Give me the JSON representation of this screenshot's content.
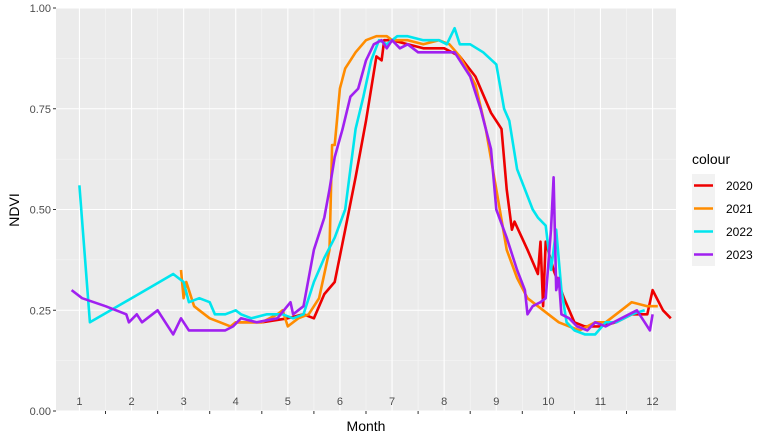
{
  "chart_data": {
    "type": "line",
    "title": "",
    "xlabel": "Month",
    "ylabel": "NDVI",
    "xlim": [
      0.55,
      12.45
    ],
    "ylim": [
      0,
      1
    ],
    "grid": true,
    "legend_position": "right",
    "legend_title": "colour",
    "month_labels": [
      "1",
      "2",
      "3",
      "4",
      "5",
      "6",
      "7",
      "8",
      "9",
      "10",
      "11",
      "12"
    ],
    "y_ticks": [
      0,
      0.25,
      0.5,
      0.75,
      1
    ],
    "y_tick_labels": [
      "0.00",
      "0.25",
      "0.50",
      "0.75",
      "1.00"
    ],
    "series": [
      {
        "name": "2020",
        "color": "#ee0000",
        "points": [
          [
            4,
            0.22
          ],
          [
            4.5,
            0.22
          ],
          [
            5,
            0.23
          ],
          [
            5.3,
            0.24
          ],
          [
            5.5,
            0.23
          ],
          [
            5.7,
            0.29
          ],
          [
            5.9,
            0.32
          ],
          [
            6.1,
            0.45
          ],
          [
            6.3,
            0.58
          ],
          [
            6.5,
            0.72
          ],
          [
            6.7,
            0.88
          ],
          [
            6.8,
            0.87
          ],
          [
            6.85,
            0.92
          ],
          [
            7,
            0.92
          ],
          [
            7.3,
            0.91
          ],
          [
            7.6,
            0.9
          ],
          [
            8,
            0.9
          ],
          [
            8.3,
            0.88
          ],
          [
            8.6,
            0.83
          ],
          [
            8.9,
            0.74
          ],
          [
            9.1,
            0.7
          ],
          [
            9.2,
            0.55
          ],
          [
            9.3,
            0.45
          ],
          [
            9.35,
            0.47
          ],
          [
            9.6,
            0.4
          ],
          [
            9.8,
            0.34
          ],
          [
            9.85,
            0.42
          ],
          [
            9.9,
            0.26
          ],
          [
            9.95,
            0.42
          ],
          [
            10.1,
            0.35
          ],
          [
            10.3,
            0.28
          ],
          [
            10.5,
            0.22
          ],
          [
            10.7,
            0.21
          ],
          [
            11,
            0.21
          ],
          [
            11.3,
            0.22
          ],
          [
            11.6,
            0.24
          ],
          [
            11.9,
            0.24
          ],
          [
            12,
            0.3
          ],
          [
            12.2,
            0.25
          ],
          [
            12.35,
            0.23
          ]
        ]
      },
      {
        "name": "2021",
        "color": "#ff8c00",
        "points": [
          [
            2.95,
            0.35
          ],
          [
            3,
            0.28
          ],
          [
            3.05,
            0.32
          ],
          [
            3.15,
            0.28
          ],
          [
            3.2,
            0.26
          ],
          [
            3.3,
            0.25
          ],
          [
            3.5,
            0.23
          ],
          [
            3.7,
            0.22
          ],
          [
            3.9,
            0.21
          ],
          [
            4,
            0.22
          ],
          [
            4.2,
            0.22
          ],
          [
            4.5,
            0.22
          ],
          [
            4.8,
            0.24
          ],
          [
            4.9,
            0.25
          ],
          [
            5,
            0.21
          ],
          [
            5.2,
            0.23
          ],
          [
            5.4,
            0.24
          ],
          [
            5.6,
            0.28
          ],
          [
            5.8,
            0.4
          ],
          [
            5.85,
            0.66
          ],
          [
            5.9,
            0.66
          ],
          [
            6,
            0.8
          ],
          [
            6.1,
            0.85
          ],
          [
            6.2,
            0.87
          ],
          [
            6.3,
            0.89
          ],
          [
            6.5,
            0.92
          ],
          [
            6.7,
            0.93
          ],
          [
            6.9,
            0.93
          ],
          [
            7,
            0.92
          ],
          [
            7.3,
            0.92
          ],
          [
            7.6,
            0.91
          ],
          [
            7.9,
            0.92
          ],
          [
            8.1,
            0.91
          ],
          [
            8.3,
            0.88
          ],
          [
            8.6,
            0.81
          ],
          [
            8.8,
            0.7
          ],
          [
            9,
            0.55
          ],
          [
            9.2,
            0.4
          ],
          [
            9.4,
            0.33
          ],
          [
            9.6,
            0.28
          ],
          [
            9.8,
            0.26
          ],
          [
            10,
            0.24
          ],
          [
            10.2,
            0.22
          ],
          [
            10.4,
            0.21
          ],
          [
            10.6,
            0.2
          ],
          [
            10.9,
            0.22
          ],
          [
            11.1,
            0.22
          ],
          [
            11.4,
            0.25
          ],
          [
            11.6,
            0.27
          ],
          [
            11.9,
            0.26
          ],
          [
            12.1,
            0.26
          ]
        ]
      },
      {
        "name": "2022",
        "color": "#00e5ee",
        "points": [
          [
            1,
            0.56
          ],
          [
            1.2,
            0.22
          ],
          [
            1.6,
            0.25
          ],
          [
            2,
            0.28
          ],
          [
            2.4,
            0.31
          ],
          [
            2.8,
            0.34
          ],
          [
            3,
            0.32
          ],
          [
            3.1,
            0.27
          ],
          [
            3.3,
            0.28
          ],
          [
            3.5,
            0.27
          ],
          [
            3.6,
            0.24
          ],
          [
            3.8,
            0.24
          ],
          [
            4,
            0.25
          ],
          [
            4.1,
            0.24
          ],
          [
            4.3,
            0.23
          ],
          [
            4.6,
            0.24
          ],
          [
            4.9,
            0.24
          ],
          [
            5.1,
            0.23
          ],
          [
            5.3,
            0.24
          ],
          [
            5.5,
            0.32
          ],
          [
            5.7,
            0.38
          ],
          [
            5.9,
            0.43
          ],
          [
            6.1,
            0.5
          ],
          [
            6.2,
            0.6
          ],
          [
            6.3,
            0.7
          ],
          [
            6.45,
            0.78
          ],
          [
            6.6,
            0.87
          ],
          [
            6.75,
            0.92
          ],
          [
            6.9,
            0.91
          ],
          [
            7.1,
            0.93
          ],
          [
            7.3,
            0.93
          ],
          [
            7.6,
            0.92
          ],
          [
            7.9,
            0.92
          ],
          [
            8.05,
            0.91
          ],
          [
            8.2,
            0.95
          ],
          [
            8.3,
            0.91
          ],
          [
            8.5,
            0.91
          ],
          [
            8.75,
            0.89
          ],
          [
            9,
            0.86
          ],
          [
            9.15,
            0.75
          ],
          [
            9.25,
            0.72
          ],
          [
            9.4,
            0.6
          ],
          [
            9.55,
            0.55
          ],
          [
            9.7,
            0.5
          ],
          [
            9.8,
            0.48
          ],
          [
            9.95,
            0.46
          ],
          [
            10.05,
            0.35
          ],
          [
            10.15,
            0.45
          ],
          [
            10.25,
            0.3
          ],
          [
            10.35,
            0.22
          ],
          [
            10.5,
            0.2
          ],
          [
            10.7,
            0.19
          ],
          [
            10.9,
            0.19
          ],
          [
            11.1,
            0.22
          ],
          [
            11.3,
            0.22
          ],
          [
            11.6,
            0.24
          ],
          [
            11.85,
            0.25
          ]
        ]
      },
      {
        "name": "2023",
        "color": "#a020f0",
        "points": [
          [
            0.85,
            0.3
          ],
          [
            1.05,
            0.28
          ],
          [
            1.5,
            0.26
          ],
          [
            1.9,
            0.24
          ],
          [
            1.95,
            0.22
          ],
          [
            2.1,
            0.24
          ],
          [
            2.2,
            0.22
          ],
          [
            2.5,
            0.25
          ],
          [
            2.7,
            0.21
          ],
          [
            2.8,
            0.19
          ],
          [
            2.95,
            0.23
          ],
          [
            3.1,
            0.2
          ],
          [
            3.4,
            0.2
          ],
          [
            3.8,
            0.2
          ],
          [
            3.95,
            0.21
          ],
          [
            4.1,
            0.23
          ],
          [
            4.4,
            0.22
          ],
          [
            4.8,
            0.23
          ],
          [
            5.05,
            0.27
          ],
          [
            5.1,
            0.24
          ],
          [
            5.3,
            0.26
          ],
          [
            5.5,
            0.4
          ],
          [
            5.7,
            0.48
          ],
          [
            5.8,
            0.55
          ],
          [
            5.9,
            0.63
          ],
          [
            6.05,
            0.7
          ],
          [
            6.2,
            0.78
          ],
          [
            6.35,
            0.8
          ],
          [
            6.5,
            0.87
          ],
          [
            6.65,
            0.91
          ],
          [
            6.8,
            0.92
          ],
          [
            6.9,
            0.9
          ],
          [
            7,
            0.92
          ],
          [
            7.15,
            0.9
          ],
          [
            7.3,
            0.91
          ],
          [
            7.5,
            0.89
          ],
          [
            7.7,
            0.89
          ],
          [
            8,
            0.89
          ],
          [
            8.2,
            0.89
          ],
          [
            8.5,
            0.83
          ],
          [
            8.7,
            0.75
          ],
          [
            8.9,
            0.65
          ],
          [
            9,
            0.5
          ],
          [
            9.2,
            0.43
          ],
          [
            9.4,
            0.35
          ],
          [
            9.55,
            0.3
          ],
          [
            9.6,
            0.24
          ],
          [
            9.7,
            0.26
          ],
          [
            9.85,
            0.27
          ],
          [
            9.95,
            0.28
          ],
          [
            10.05,
            0.45
          ],
          [
            10.1,
            0.58
          ],
          [
            10.15,
            0.3
          ],
          [
            10.2,
            0.33
          ],
          [
            10.25,
            0.24
          ],
          [
            10.4,
            0.23
          ],
          [
            10.55,
            0.21
          ],
          [
            10.75,
            0.2
          ],
          [
            10.9,
            0.22
          ],
          [
            11.1,
            0.21
          ],
          [
            11.4,
            0.23
          ],
          [
            11.7,
            0.25
          ],
          [
            11.85,
            0.22
          ],
          [
            11.95,
            0.2
          ],
          [
            12,
            0.24
          ]
        ]
      }
    ]
  }
}
